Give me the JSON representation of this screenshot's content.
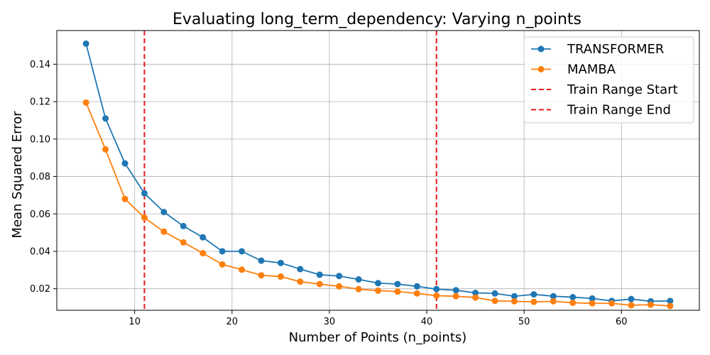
{
  "chart_data": {
    "type": "line",
    "title": "Evaluating long_term_dependency: Varying n_points",
    "xlabel": "Number of Points (n_points)",
    "ylabel": "Mean Squared Error",
    "xlim": [
      2,
      68
    ],
    "ylim": [
      0.0085,
      0.158
    ],
    "xticks": [
      "10",
      "20",
      "30",
      "40",
      "50",
      "60"
    ],
    "xtick_values": [
      10,
      20,
      30,
      40,
      50,
      60
    ],
    "yticks": [
      "0.02",
      "0.04",
      "0.06",
      "0.08",
      "0.10",
      "0.12",
      "0.14"
    ],
    "ytick_values": [
      0.02,
      0.04,
      0.06,
      0.08,
      0.1,
      0.12,
      0.14
    ],
    "grid": true,
    "legend_position": "top-right",
    "x": [
      5,
      7,
      9,
      11,
      13,
      15,
      17,
      19,
      21,
      23,
      25,
      27,
      29,
      31,
      33,
      35,
      37,
      39,
      41,
      43,
      45,
      47,
      49,
      51,
      53,
      55,
      57,
      59,
      61,
      63,
      65
    ],
    "series": [
      {
        "name": "TRANSFORMER",
        "color": "#1f77b4",
        "marker": "circle",
        "values": [
          0.151,
          0.111,
          0.087,
          0.071,
          0.061,
          0.0535,
          0.0475,
          0.04,
          0.04,
          0.035,
          0.0338,
          0.0305,
          0.0275,
          0.0268,
          0.025,
          0.023,
          0.0225,
          0.0213,
          0.0198,
          0.0192,
          0.0178,
          0.0175,
          0.016,
          0.017,
          0.016,
          0.0155,
          0.0148,
          0.0135,
          0.0145,
          0.0133,
          0.0135
        ]
      },
      {
        "name": "MAMBA",
        "color": "#ff7f0e",
        "marker": "circle",
        "values": [
          0.1195,
          0.0945,
          0.068,
          0.058,
          0.0505,
          0.0448,
          0.039,
          0.033,
          0.0302,
          0.0272,
          0.0265,
          0.0238,
          0.0225,
          0.0213,
          0.0198,
          0.019,
          0.0185,
          0.0175,
          0.0163,
          0.016,
          0.0153,
          0.0135,
          0.0133,
          0.013,
          0.0133,
          0.0125,
          0.0122,
          0.0122,
          0.0112,
          0.0115,
          0.0108
        ]
      }
    ],
    "reference_lines": [
      {
        "name": "Train Range Start",
        "x": 11,
        "color": "#e41a1c",
        "style": "dashed"
      },
      {
        "name": "Train Range End",
        "x": 41,
        "color": "#e41a1c",
        "style": "dashed"
      }
    ]
  }
}
